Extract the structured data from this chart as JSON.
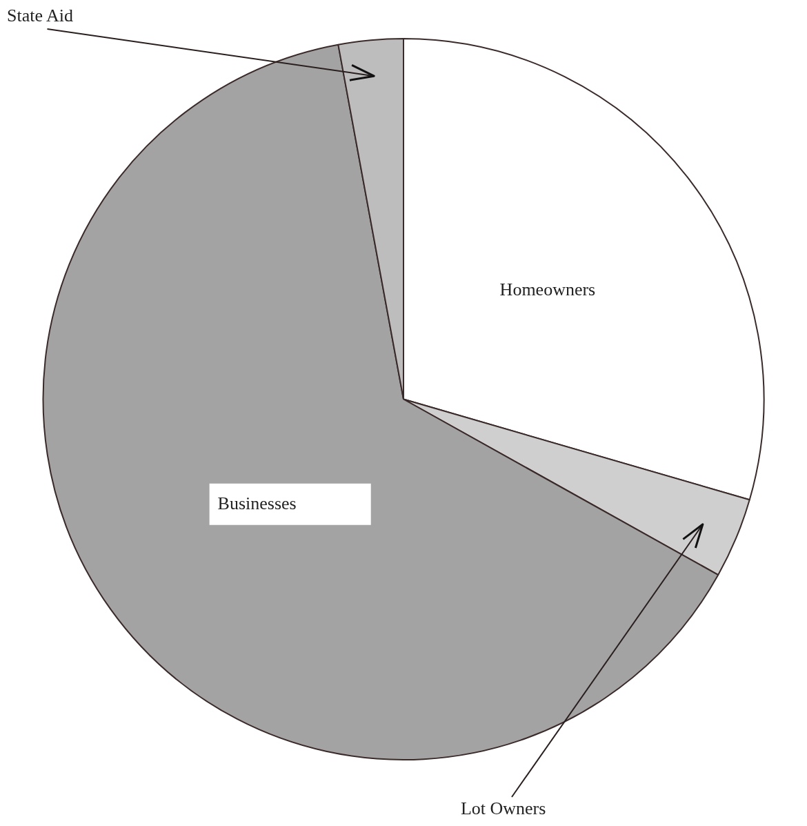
{
  "chart_data": {
    "type": "pie",
    "categories": [
      "Homeowners",
      "Lot Owners",
      "Businesses",
      "State Aid"
    ],
    "values": [
      29.5,
      3.6,
      64.0,
      2.9
    ],
    "colors": [
      "#ffffff",
      "#cfcfcf",
      "#a3a3a3",
      "#bdbdbd"
    ],
    "legend": false
  }
}
